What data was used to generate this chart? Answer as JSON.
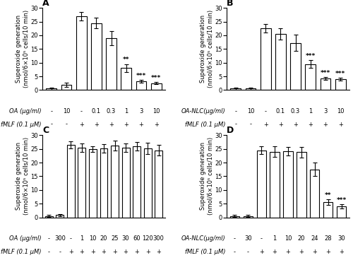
{
  "panel_A": {
    "title": "A",
    "x_labels": [
      "-",
      "10",
      "-",
      "0.1",
      "0.3",
      "1",
      "3",
      "10"
    ],
    "fmlf_labels": [
      "-",
      "-",
      "+",
      "+",
      "+",
      "+",
      "+",
      "+"
    ],
    "values": [
      0.5,
      2.0,
      27.0,
      24.5,
      19.0,
      8.0,
      3.2,
      2.5
    ],
    "errors": [
      0.3,
      0.8,
      1.5,
      2.0,
      2.5,
      1.5,
      0.4,
      0.4
    ],
    "sig": [
      "",
      "",
      "",
      "",
      "",
      "**",
      "***",
      "***"
    ],
    "xlabel_top": "OA (μg/ml)",
    "xlabel_bot": "fMLF (0.1 μM)",
    "ylim": [
      0,
      30
    ]
  },
  "panel_B": {
    "title": "B",
    "x_labels": [
      "-",
      "10",
      "-",
      "0.1",
      "0.3",
      "1",
      "3",
      "10"
    ],
    "fmlf_labels": [
      "-",
      "-",
      "+",
      "+",
      "+",
      "+",
      "+",
      "+"
    ],
    "values": [
      0.5,
      0.5,
      22.5,
      20.5,
      17.2,
      9.5,
      4.2,
      4.0
    ],
    "errors": [
      0.3,
      0.3,
      1.5,
      2.0,
      3.0,
      1.5,
      0.5,
      0.5
    ],
    "sig": [
      "",
      "",
      "",
      "",
      "",
      "***",
      "***",
      "***"
    ],
    "xlabel_top": "OA-NLC(μg/ml)",
    "xlabel_bot": "fMLF (0.1 μM)",
    "ylim": [
      0,
      30
    ]
  },
  "panel_C": {
    "title": "C",
    "x_labels": [
      "-",
      "300",
      "-",
      "1",
      "10",
      "20",
      "25",
      "30",
      "60",
      "120",
      "300"
    ],
    "fmlf_labels": [
      "-",
      "-",
      "+",
      "+",
      "+",
      "+",
      "+",
      "+",
      "+",
      "+",
      "+"
    ],
    "values": [
      0.5,
      0.8,
      26.5,
      25.5,
      25.0,
      25.2,
      26.2,
      25.5,
      26.0,
      25.2,
      24.5
    ],
    "errors": [
      0.3,
      0.3,
      1.2,
      1.5,
      1.0,
      1.5,
      1.8,
      1.5,
      1.5,
      2.0,
      2.0
    ],
    "sig": [
      "",
      "",
      "",
      "",
      "",
      "",
      "",
      "",
      "",
      "",
      ""
    ],
    "xlabel_top": "OA (μg/ml)",
    "xlabel_bot": "fMLF (0.1 μM)",
    "ylim": [
      0,
      30
    ]
  },
  "panel_D": {
    "title": "D",
    "x_labels": [
      "-",
      "30",
      "-",
      "1",
      "10",
      "20",
      "24",
      "28",
      "30"
    ],
    "fmlf_labels": [
      "-",
      "-",
      "+",
      "+",
      "+",
      "+",
      "+",
      "+",
      "+"
    ],
    "values": [
      0.5,
      0.5,
      24.5,
      24.0,
      24.2,
      23.8,
      17.5,
      5.5,
      4.0
    ],
    "errors": [
      0.3,
      0.3,
      1.5,
      2.0,
      1.5,
      2.0,
      2.5,
      1.0,
      0.8
    ],
    "sig": [
      "",
      "",
      "",
      "",
      "",
      "",
      "",
      "**",
      "***"
    ],
    "xlabel_top": "OA-NLC(μg/ml)",
    "xlabel_bot": "fMLF (0.1 μM)",
    "ylim": [
      0,
      30
    ]
  },
  "ylabel": "Superoxide generation\n(nmol/6×10⁵ cells/10 min)",
  "bar_color": "#ffffff",
  "bar_edgecolor": "#000000",
  "bar_linewidth": 0.8,
  "capsize": 2,
  "elinewidth": 0.8,
  "sig_fontsize": 6.5,
  "label_fontsize": 6.0,
  "header_fontsize": 6.0,
  "title_fontsize": 9,
  "ylabel_fontsize": 6.0,
  "tick_fontsize": 6.0
}
